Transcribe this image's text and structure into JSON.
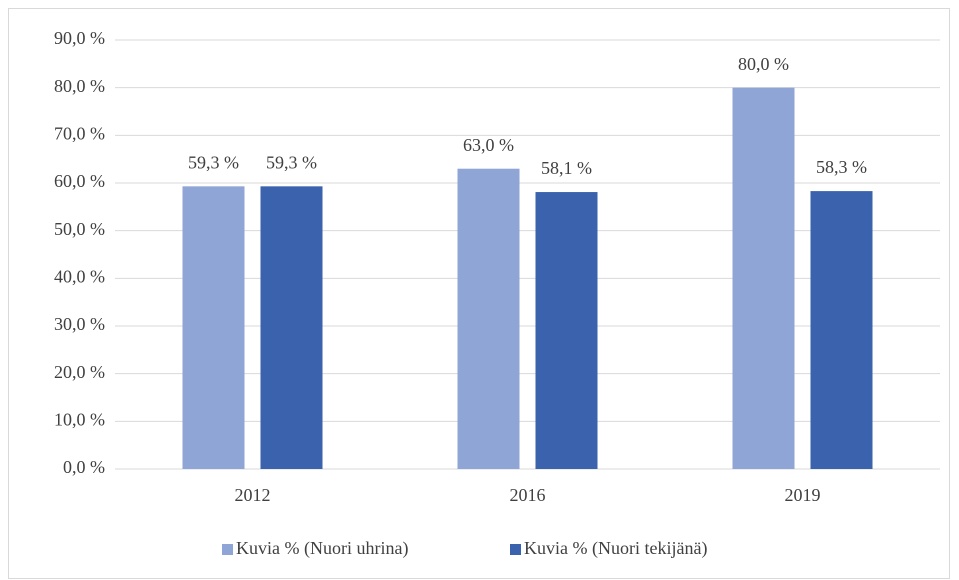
{
  "chart_data": {
    "type": "bar",
    "categories": [
      "2012",
      "2016",
      "2019"
    ],
    "series": [
      {
        "name": "Kuvia % (Nuori uhrina)",
        "color": "#8fa5d6",
        "values": [
          59.3,
          63.0,
          80.0
        ],
        "value_labels": [
          "59,3 %",
          "63,0 %",
          "80,0 %"
        ]
      },
      {
        "name": "Kuvia % (Nuori tekijänä)",
        "color": "#3a62ad",
        "values": [
          59.3,
          58.1,
          58.3
        ],
        "value_labels": [
          "59,3 %",
          "58,1 %",
          "58,3 %"
        ]
      }
    ],
    "ylim": [
      0,
      90
    ],
    "yticks": [
      {
        "value": 0,
        "label": "0,0 %"
      },
      {
        "value": 10,
        "label": "10,0 %"
      },
      {
        "value": 20,
        "label": "20,0 %"
      },
      {
        "value": 30,
        "label": "30,0 %"
      },
      {
        "value": 40,
        "label": "40,0 %"
      },
      {
        "value": 50,
        "label": "50,0 %"
      },
      {
        "value": 60,
        "label": "60,0 %"
      },
      {
        "value": 70,
        "label": "70,0 %"
      },
      {
        "value": 80,
        "label": "80,0 %"
      },
      {
        "value": 90,
        "label": "90,0 %"
      }
    ],
    "grid": true,
    "legend": "bottom"
  }
}
